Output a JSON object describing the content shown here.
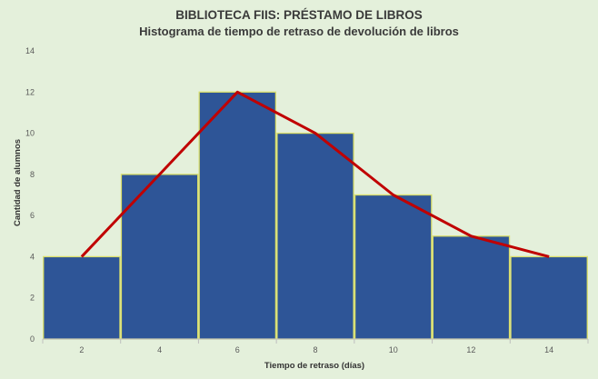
{
  "chart_data": {
    "type": "bar",
    "title": "BIBLIOTECA FIIS: PRÉSTAMO DE LIBROS",
    "subtitle": "Histograma de tiempo de retraso de devolución de libros",
    "xlabel": "Tiempo de retraso (días)",
    "ylabel": "Cantidad de alumnos",
    "categories": [
      "2",
      "4",
      "6",
      "8",
      "10",
      "12",
      "14"
    ],
    "values": [
      4,
      8,
      12,
      10,
      7,
      5,
      4
    ],
    "ylim": [
      0,
      14
    ],
    "yticks": [
      "0",
      "2",
      "4",
      "6",
      "8",
      "10",
      "12",
      "14"
    ],
    "grid": false,
    "overlay_line": {
      "type": "line",
      "values": [
        4,
        8,
        12,
        10,
        7,
        5,
        4
      ]
    },
    "colors": {
      "bar_fill": "#2e5597",
      "bar_edge": "#d9de6a",
      "line": "#c00000",
      "background": "#e4f0db",
      "axis": "#bfbfbf"
    }
  }
}
